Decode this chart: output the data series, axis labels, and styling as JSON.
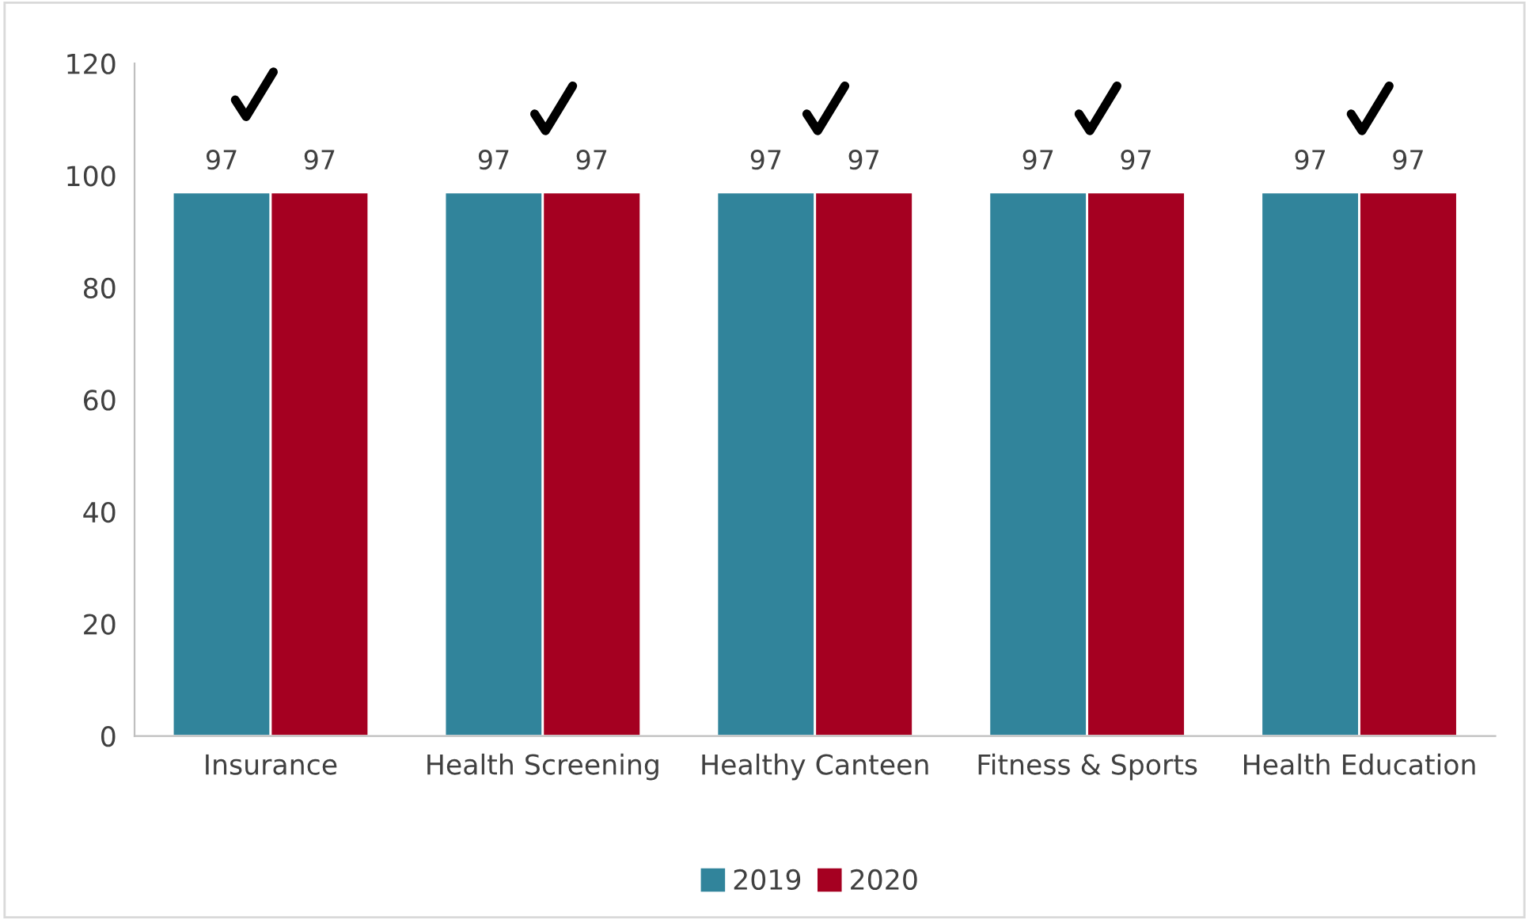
{
  "chart_data": {
    "type": "bar",
    "categories": [
      "Insurance",
      "Health Screening",
      "Healthy Canteen",
      "Fitness & Sports",
      "Health Education"
    ],
    "series": [
      {
        "name": "2019",
        "color": "#31849b",
        "values": [
          97,
          97,
          97,
          97,
          97
        ]
      },
      {
        "name": "2020",
        "color": "#a50021",
        "values": [
          97,
          97,
          97,
          97,
          97
        ]
      }
    ],
    "ylim": [
      0,
      120
    ],
    "yticks": [
      0,
      20,
      40,
      60,
      80,
      100,
      120
    ],
    "data_labels": true,
    "grid": false,
    "legend": "bottom"
  }
}
